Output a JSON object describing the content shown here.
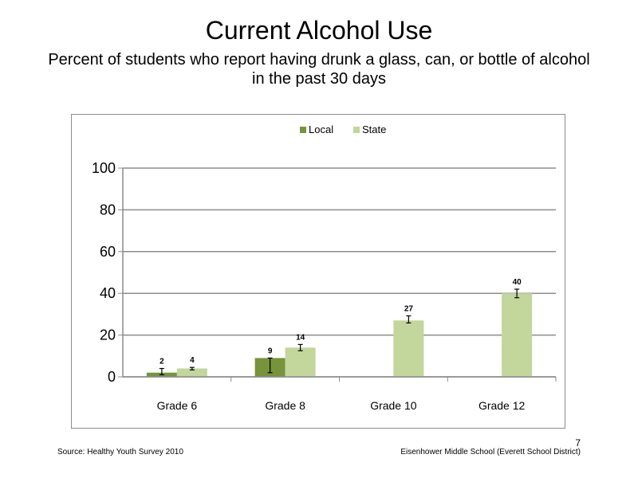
{
  "slide": {
    "title": "Current Alcohol Use",
    "subtitle": "Percent of students who report having drunk a glass, can, or bottle of alcohol in the past 30 days",
    "page_number": "7",
    "footer_source": "Source: Healthy Youth Survey 2010",
    "footer_school": "Eisenhower Middle  School (Everett School District)"
  },
  "chart_data": {
    "type": "bar",
    "categories": [
      "Grade 6",
      "Grade 8",
      "Grade 10",
      "Grade 12"
    ],
    "series": [
      {
        "name": "Local",
        "color": "#77933c",
        "values": [
          2,
          9,
          null,
          null
        ],
        "labels": [
          "2",
          "9",
          "",
          ""
        ],
        "error": [
          [
            1,
            4
          ],
          [
            2,
            9
          ],
          null,
          null
        ]
      },
      {
        "name": "State",
        "color": "#c3d69b",
        "values": [
          4,
          14,
          27,
          40
        ],
        "labels": [
          "4",
          "14",
          "27",
          "40"
        ],
        "error": [
          [
            3.3,
            4.5
          ],
          [
            12.5,
            15.5
          ],
          [
            25.8,
            29.2
          ],
          [
            37.9,
            42
          ]
        ]
      }
    ],
    "ylim": [
      0,
      100
    ],
    "yticks": [
      "0",
      "20",
      "40",
      "60",
      "80",
      "100"
    ],
    "grid": true,
    "legend_position": "top"
  }
}
